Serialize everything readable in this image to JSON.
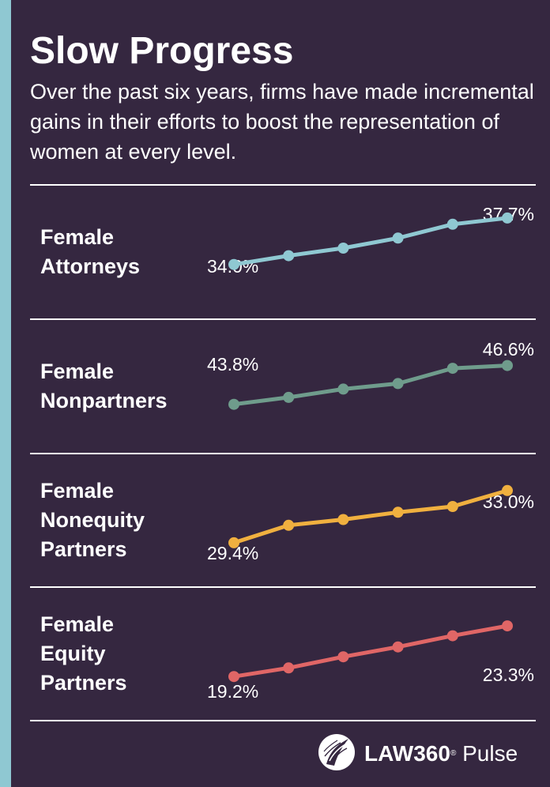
{
  "header": {
    "title": "Slow Progress",
    "subtitle": "Over the past six years, firms have made incremental gains in their efforts to boost the representation of women at every level."
  },
  "chart_data": {
    "type": "line",
    "grid": false,
    "legend": "none",
    "panels": [
      {
        "label": "Female Attorneys",
        "color": "#8fc8d2",
        "values": [
          34.0,
          34.7,
          35.3,
          36.1,
          37.2,
          37.7
        ],
        "first_label": "34.0%",
        "last_label": "37.7%",
        "ylim": [
          29.7,
          40.4
        ]
      },
      {
        "label": "Female Nonpartners",
        "color": "#6f9c8c",
        "values": [
          43.8,
          44.3,
          44.9,
          45.3,
          46.4,
          46.6
        ],
        "first_label": "43.8%",
        "last_label": "46.6%",
        "ylim": [
          40.3,
          50.0
        ]
      },
      {
        "label": "Female Nonequity Partners",
        "color": "#f0b03f",
        "values": [
          29.4,
          30.6,
          31.0,
          31.5,
          31.9,
          33.0
        ],
        "first_label": "29.4%",
        "last_label": "33.0%",
        "ylim": [
          26.4,
          35.6
        ]
      },
      {
        "label": "Female Equity Partners",
        "color": "#e06666",
        "values": [
          19.2,
          19.9,
          20.8,
          21.6,
          22.5,
          23.3
        ],
        "first_label": "19.2%",
        "last_label": "23.3%",
        "ylim": [
          15.7,
          26.5
        ]
      }
    ]
  },
  "footer": {
    "logo_text": "LAW360",
    "logo_mark": "®",
    "logo_suffix": "Pulse"
  }
}
